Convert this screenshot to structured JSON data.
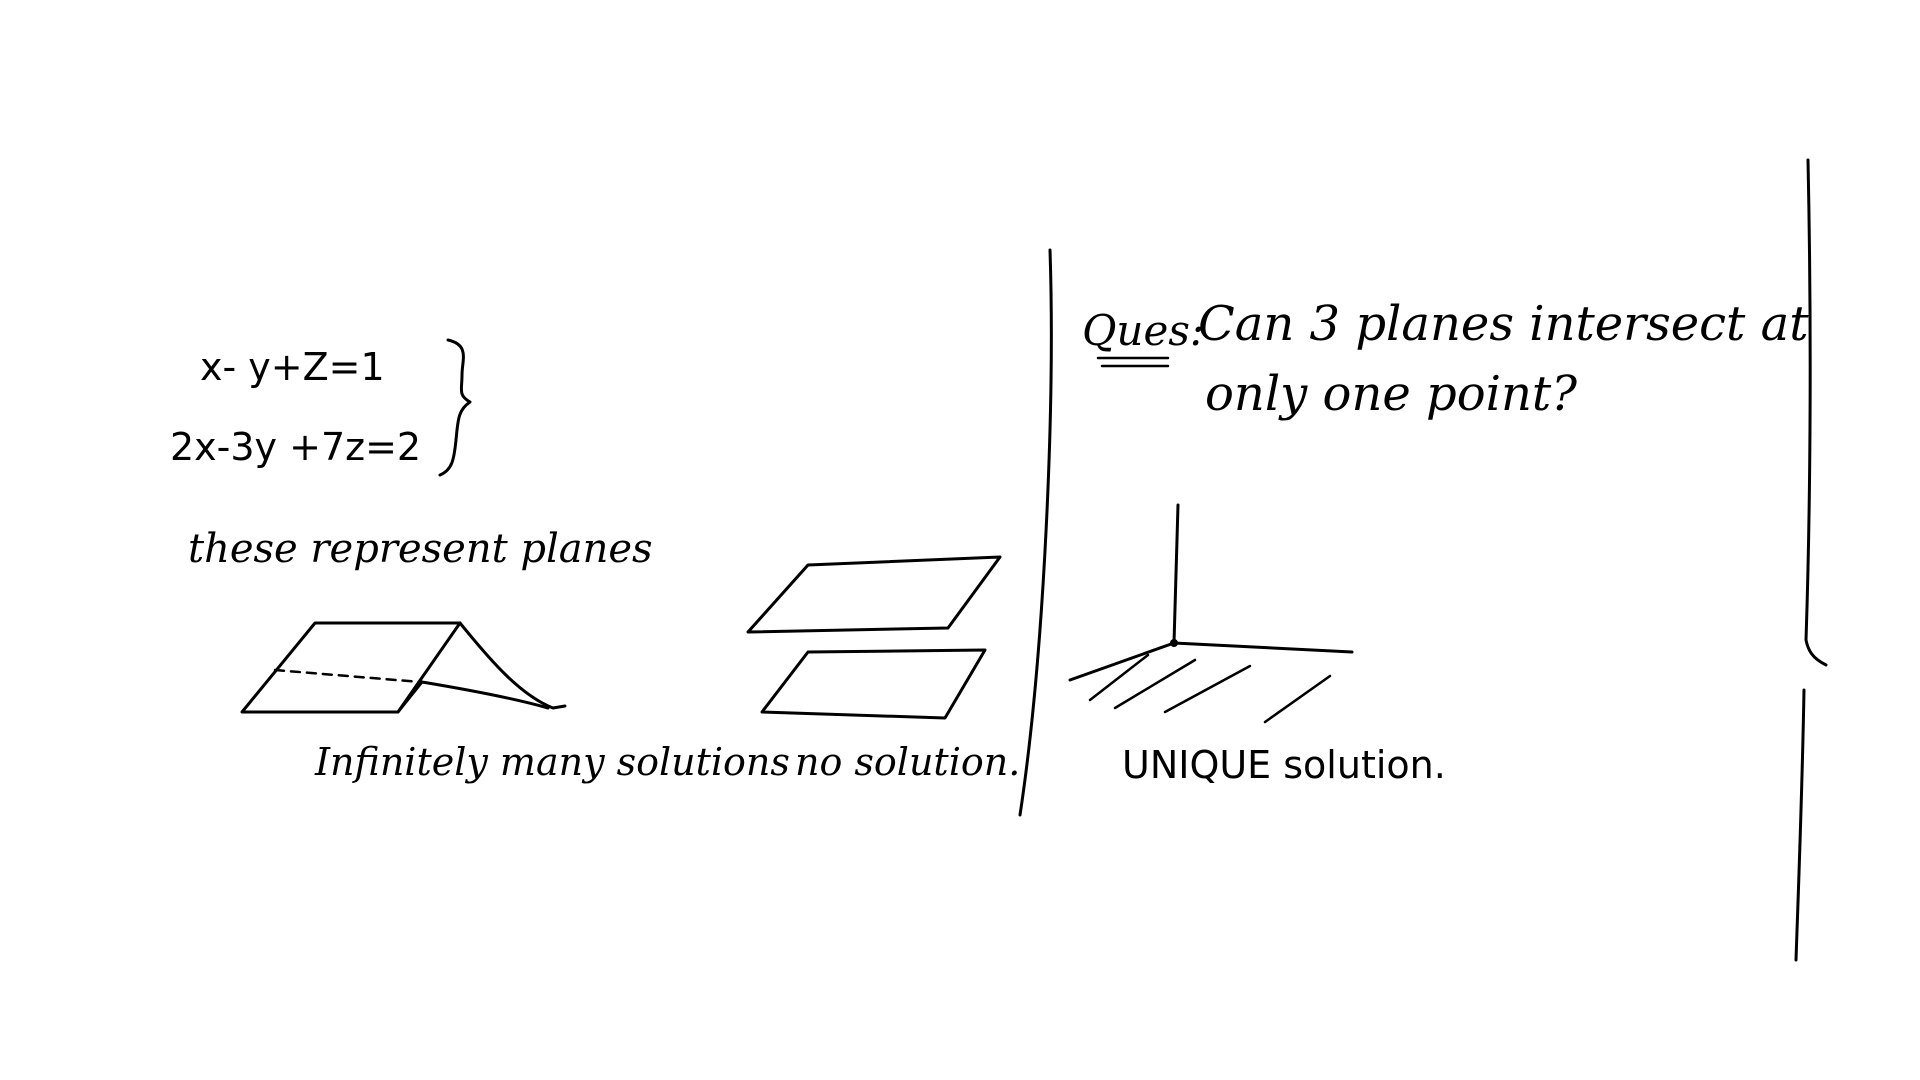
{
  "equations": {
    "eq1": "x- y+Z=1",
    "eq2": "2x-3y +7z=2"
  },
  "note": "these represent planes",
  "cases": {
    "infinite": "Infinitely many solutions",
    "none": "no solution.",
    "unique": "UNIQUE solution."
  },
  "question": {
    "prefix": "Ques:",
    "line1": "Can 3 planes intersect at",
    "line2": "only one point?"
  },
  "colors": {
    "ink": "#000000",
    "background": "#ffffff"
  }
}
